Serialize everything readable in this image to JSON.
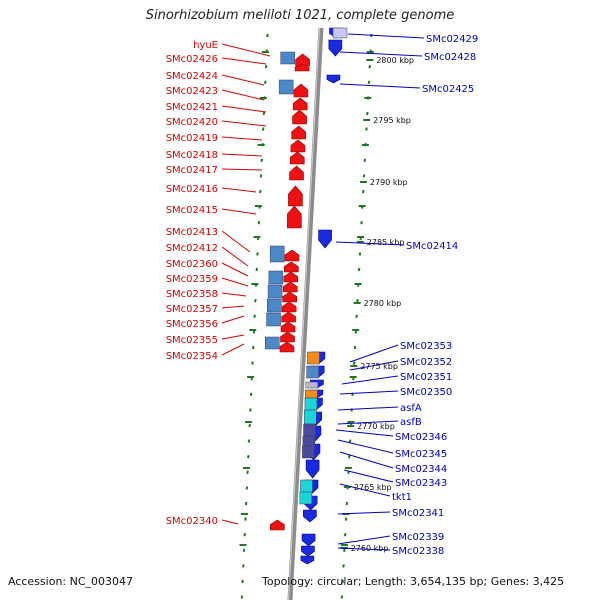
{
  "title": "Sinorhizobium meliloti 1021, complete genome",
  "accession": "Accession: NC_003047",
  "topology": "Topology: circular; Length: 3,654,135 bp; Genes: 3,425",
  "colors": {
    "left_label": "#dd0000",
    "right_label": "#0000cc",
    "tick_line": "#1e7a1e",
    "backbone": "#8c8c8c",
    "forward_gene": "#ee1111",
    "reverse_gene": "#1a2adf",
    "feature_blue": "#4a88c8",
    "feature_orange": "#f08c1a",
    "feature_cyan": "#1ad6d6",
    "feature_purple": "#4a4a9a"
  },
  "left_labels": [
    "hyuE",
    "SMc02426",
    "SMc02424",
    "SMc02423",
    "SMc02421",
    "SMc02420",
    "SMc02419",
    "SMc02418",
    "SMc02417",
    "SMc02416",
    "SMc02415",
    "SMc02413",
    "SMc02412",
    "SMc02360",
    "SMc02359",
    "SMc02358",
    "SMc02357",
    "SMc02356",
    "SMc02355",
    "SMc02354",
    "SMc02340"
  ],
  "right_labels": [
    "SMc02429",
    "SMc02428",
    "SMc02425",
    "SMc02414",
    "SMc02353",
    "SMc02352",
    "SMc02351",
    "SMc02350",
    "asfA",
    "asfB",
    "SMc02346",
    "SMc02345",
    "SMc02344",
    "SMc02343",
    "tkt1",
    "SMc02341",
    "SMc02339",
    "SMc02338"
  ],
  "scale_labels": [
    "2800 kbp",
    "2795 kbp",
    "2790 kbp",
    "2785 kbp",
    "2780 kbp",
    "2775 kbp",
    "2770 kbp",
    "2765 kbp",
    "2760 kbp"
  ]
}
